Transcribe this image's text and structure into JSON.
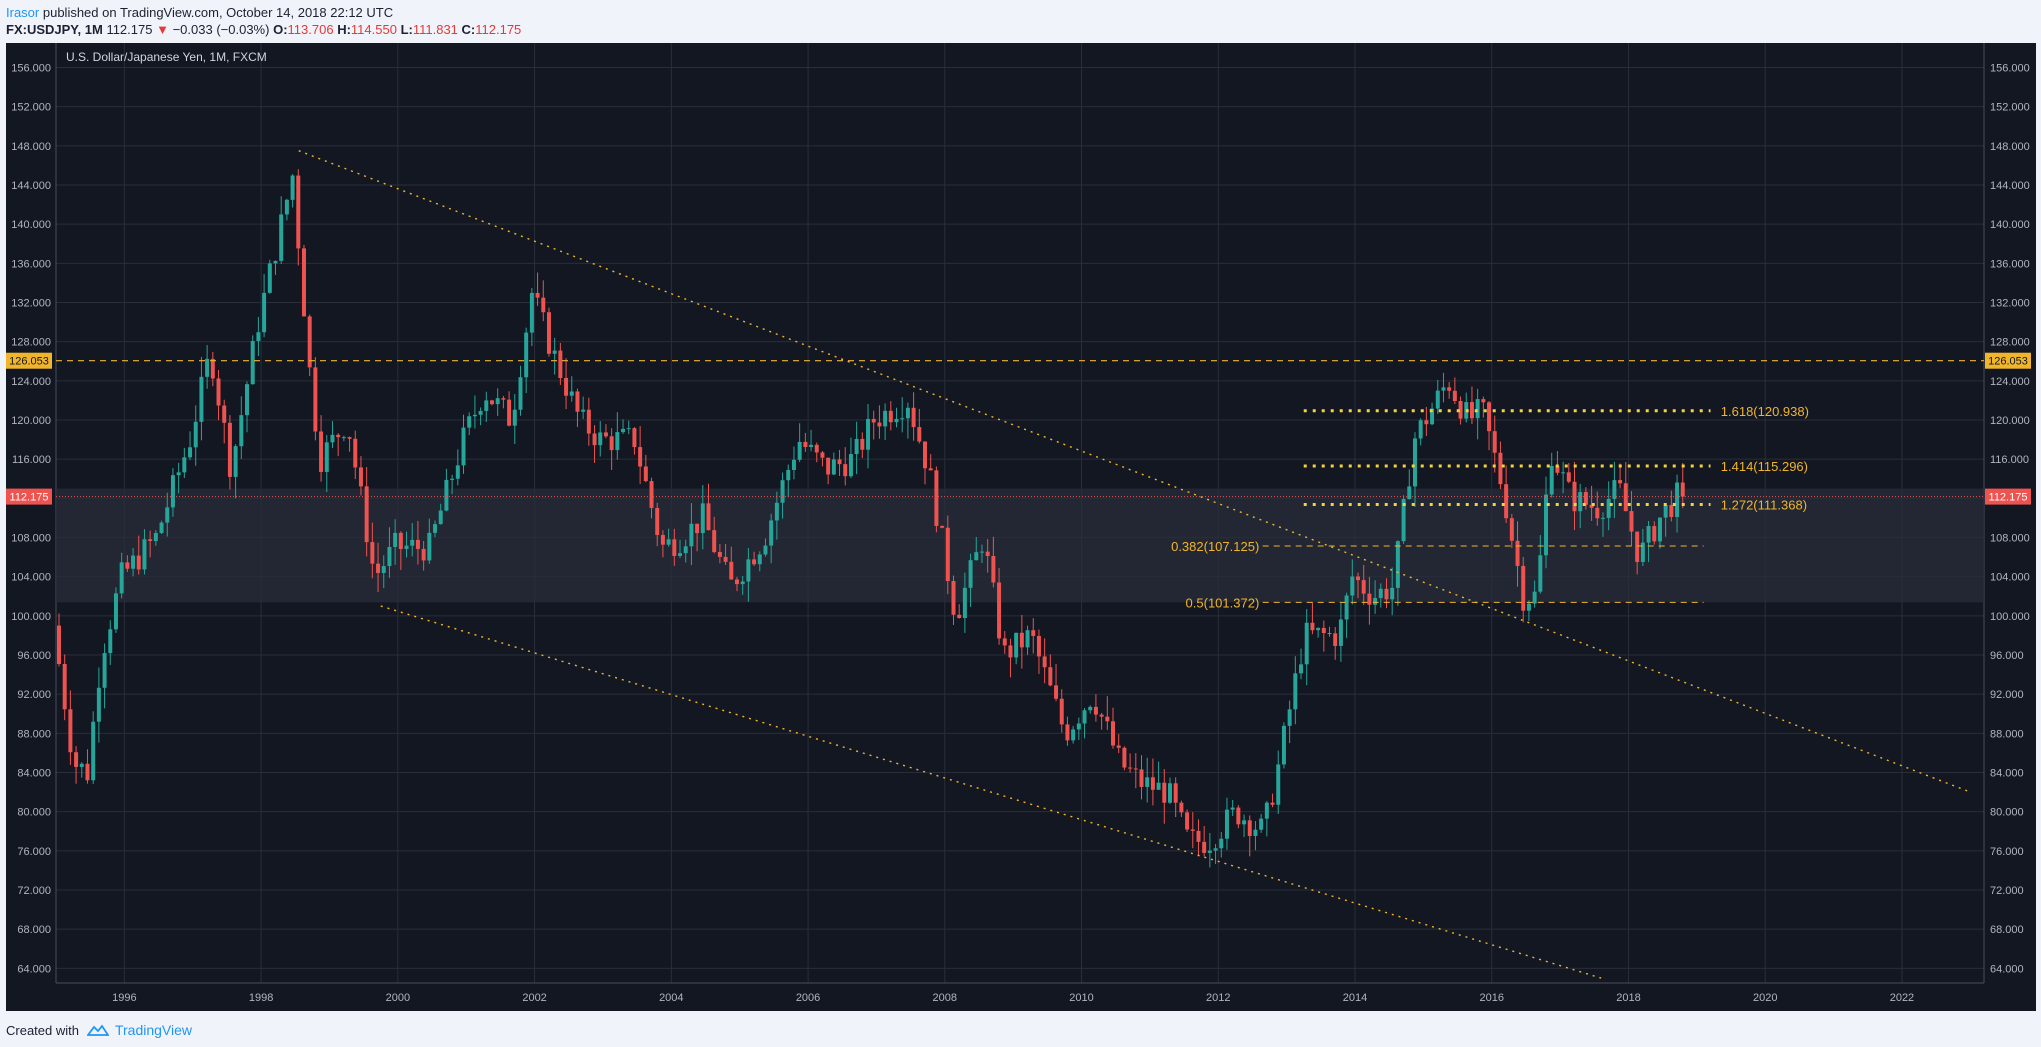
{
  "header": {
    "author": "Irasor",
    "published_text": "published on TradingView.com, October 14, 2018 22:12 UTC",
    "symbol": "FX:USDJPY, 1M",
    "last": "112.175",
    "change": "−0.033 (−0.03%)",
    "o_label": "O:",
    "o_value": "113.706",
    "h_label": "H:",
    "h_value": "114.550",
    "l_label": "L:",
    "l_value": "111.831",
    "c_label": "C:",
    "c_value": "112.175"
  },
  "footer": {
    "created_with": "Created with",
    "brand": "TradingView"
  },
  "colors": {
    "background": "#131722",
    "grid": "#2a2e39",
    "up": "#26a69a",
    "down": "#ef5350",
    "annotation": "#f0b52b",
    "price_line": "#ef5350",
    "text": "#b2b5be"
  },
  "chart_data": {
    "type": "candlestick",
    "title": "U.S. Dollar/Japanese Yen, 1M, FXCM",
    "ylim": [
      62.5,
      158.5
    ],
    "xlim": [
      1995.0,
      2023.2
    ],
    "y_ticks": [
      "64.000",
      "68.000",
      "72.000",
      "76.000",
      "80.000",
      "84.000",
      "88.000",
      "92.000",
      "96.000",
      "100.000",
      "104.000",
      "108.000",
      "112.000",
      "116.000",
      "120.000",
      "124.000",
      "128.000",
      "132.000",
      "136.000",
      "140.000",
      "144.000",
      "148.000",
      "152.000",
      "156.000"
    ],
    "x_ticks": [
      "1996",
      "1998",
      "2000",
      "2002",
      "2004",
      "2006",
      "2008",
      "2010",
      "2012",
      "2014",
      "2016",
      "2018",
      "2020",
      "2022"
    ],
    "price_anchors": [
      [
        1995.0,
        99
      ],
      [
        1995.3,
        85
      ],
      [
        1995.5,
        84
      ],
      [
        1995.7,
        96
      ],
      [
        1996.0,
        104
      ],
      [
        1996.5,
        108
      ],
      [
        1997.0,
        118
      ],
      [
        1997.3,
        127
      ],
      [
        1997.6,
        115
      ],
      [
        1998.0,
        130
      ],
      [
        1998.5,
        145
      ],
      [
        1998.75,
        125
      ],
      [
        1998.9,
        116
      ],
      [
        1999.3,
        120
      ],
      [
        1999.7,
        104
      ],
      [
        2000.0,
        107
      ],
      [
        2000.5,
        107
      ],
      [
        2001.0,
        118
      ],
      [
        2001.3,
        123
      ],
      [
        2001.7,
        120
      ],
      [
        2002.0,
        133
      ],
      [
        2002.3,
        127
      ],
      [
        2002.7,
        120
      ],
      [
        2003.0,
        118
      ],
      [
        2003.5,
        118
      ],
      [
        2003.9,
        107
      ],
      [
        2004.2,
        108
      ],
      [
        2004.5,
        110
      ],
      [
        2004.9,
        103
      ],
      [
        2005.4,
        108
      ],
      [
        2005.9,
        118
      ],
      [
        2006.3,
        115
      ],
      [
        2006.7,
        116
      ],
      [
        2007.0,
        120
      ],
      [
        2007.5,
        122
      ],
      [
        2007.8,
        115
      ],
      [
        2008.2,
        100
      ],
      [
        2008.6,
        108
      ],
      [
        2008.9,
        96
      ],
      [
        2009.3,
        98
      ],
      [
        2009.8,
        88
      ],
      [
        2010.2,
        92
      ],
      [
        2010.6,
        85
      ],
      [
        2010.9,
        83
      ],
      [
        2011.3,
        82
      ],
      [
        2011.6,
        77
      ],
      [
        2011.9,
        77
      ],
      [
        2012.3,
        80
      ],
      [
        2012.7,
        78
      ],
      [
        2012.9,
        84
      ],
      [
        2013.3,
        98
      ],
      [
        2013.8,
        98
      ],
      [
        2014.0,
        104
      ],
      [
        2014.3,
        102
      ],
      [
        2014.6,
        103
      ],
      [
        2014.9,
        118
      ],
      [
        2015.4,
        124
      ],
      [
        2015.7,
        120
      ],
      [
        2015.9,
        121
      ],
      [
        2016.2,
        113
      ],
      [
        2016.5,
        102
      ],
      [
        2016.7,
        102
      ],
      [
        2016.9,
        117
      ],
      [
        2017.2,
        112
      ],
      [
        2017.6,
        111
      ],
      [
        2017.9,
        113
      ],
      [
        2018.2,
        106
      ],
      [
        2018.5,
        110
      ],
      [
        2018.75,
        112.175
      ]
    ],
    "last_price": 112.175,
    "horizontal_line": {
      "value": 126.053,
      "label": "126.053"
    },
    "price_label": "112.175",
    "shaded_zone": [
      101.372,
      113.0
    ],
    "fib_levels": [
      {
        "label": "1.618(120.938)",
        "value": 120.938
      },
      {
        "label": "1.414(115.296)",
        "value": 115.296
      },
      {
        "label": "1.272(111.368)",
        "value": 111.368
      },
      {
        "label": "0.382(107.125)",
        "value": 107.125
      },
      {
        "label": "0.5(101.372)",
        "value": 101.372
      }
    ],
    "trendlines": [
      {
        "name": "upper",
        "from": [
          1998.55,
          147.5
        ],
        "to": [
          2023.0,
          82.0
        ]
      },
      {
        "name": "lower",
        "from": [
          1999.75,
          101.0
        ],
        "to": [
          2017.6,
          63.0
        ]
      }
    ]
  }
}
